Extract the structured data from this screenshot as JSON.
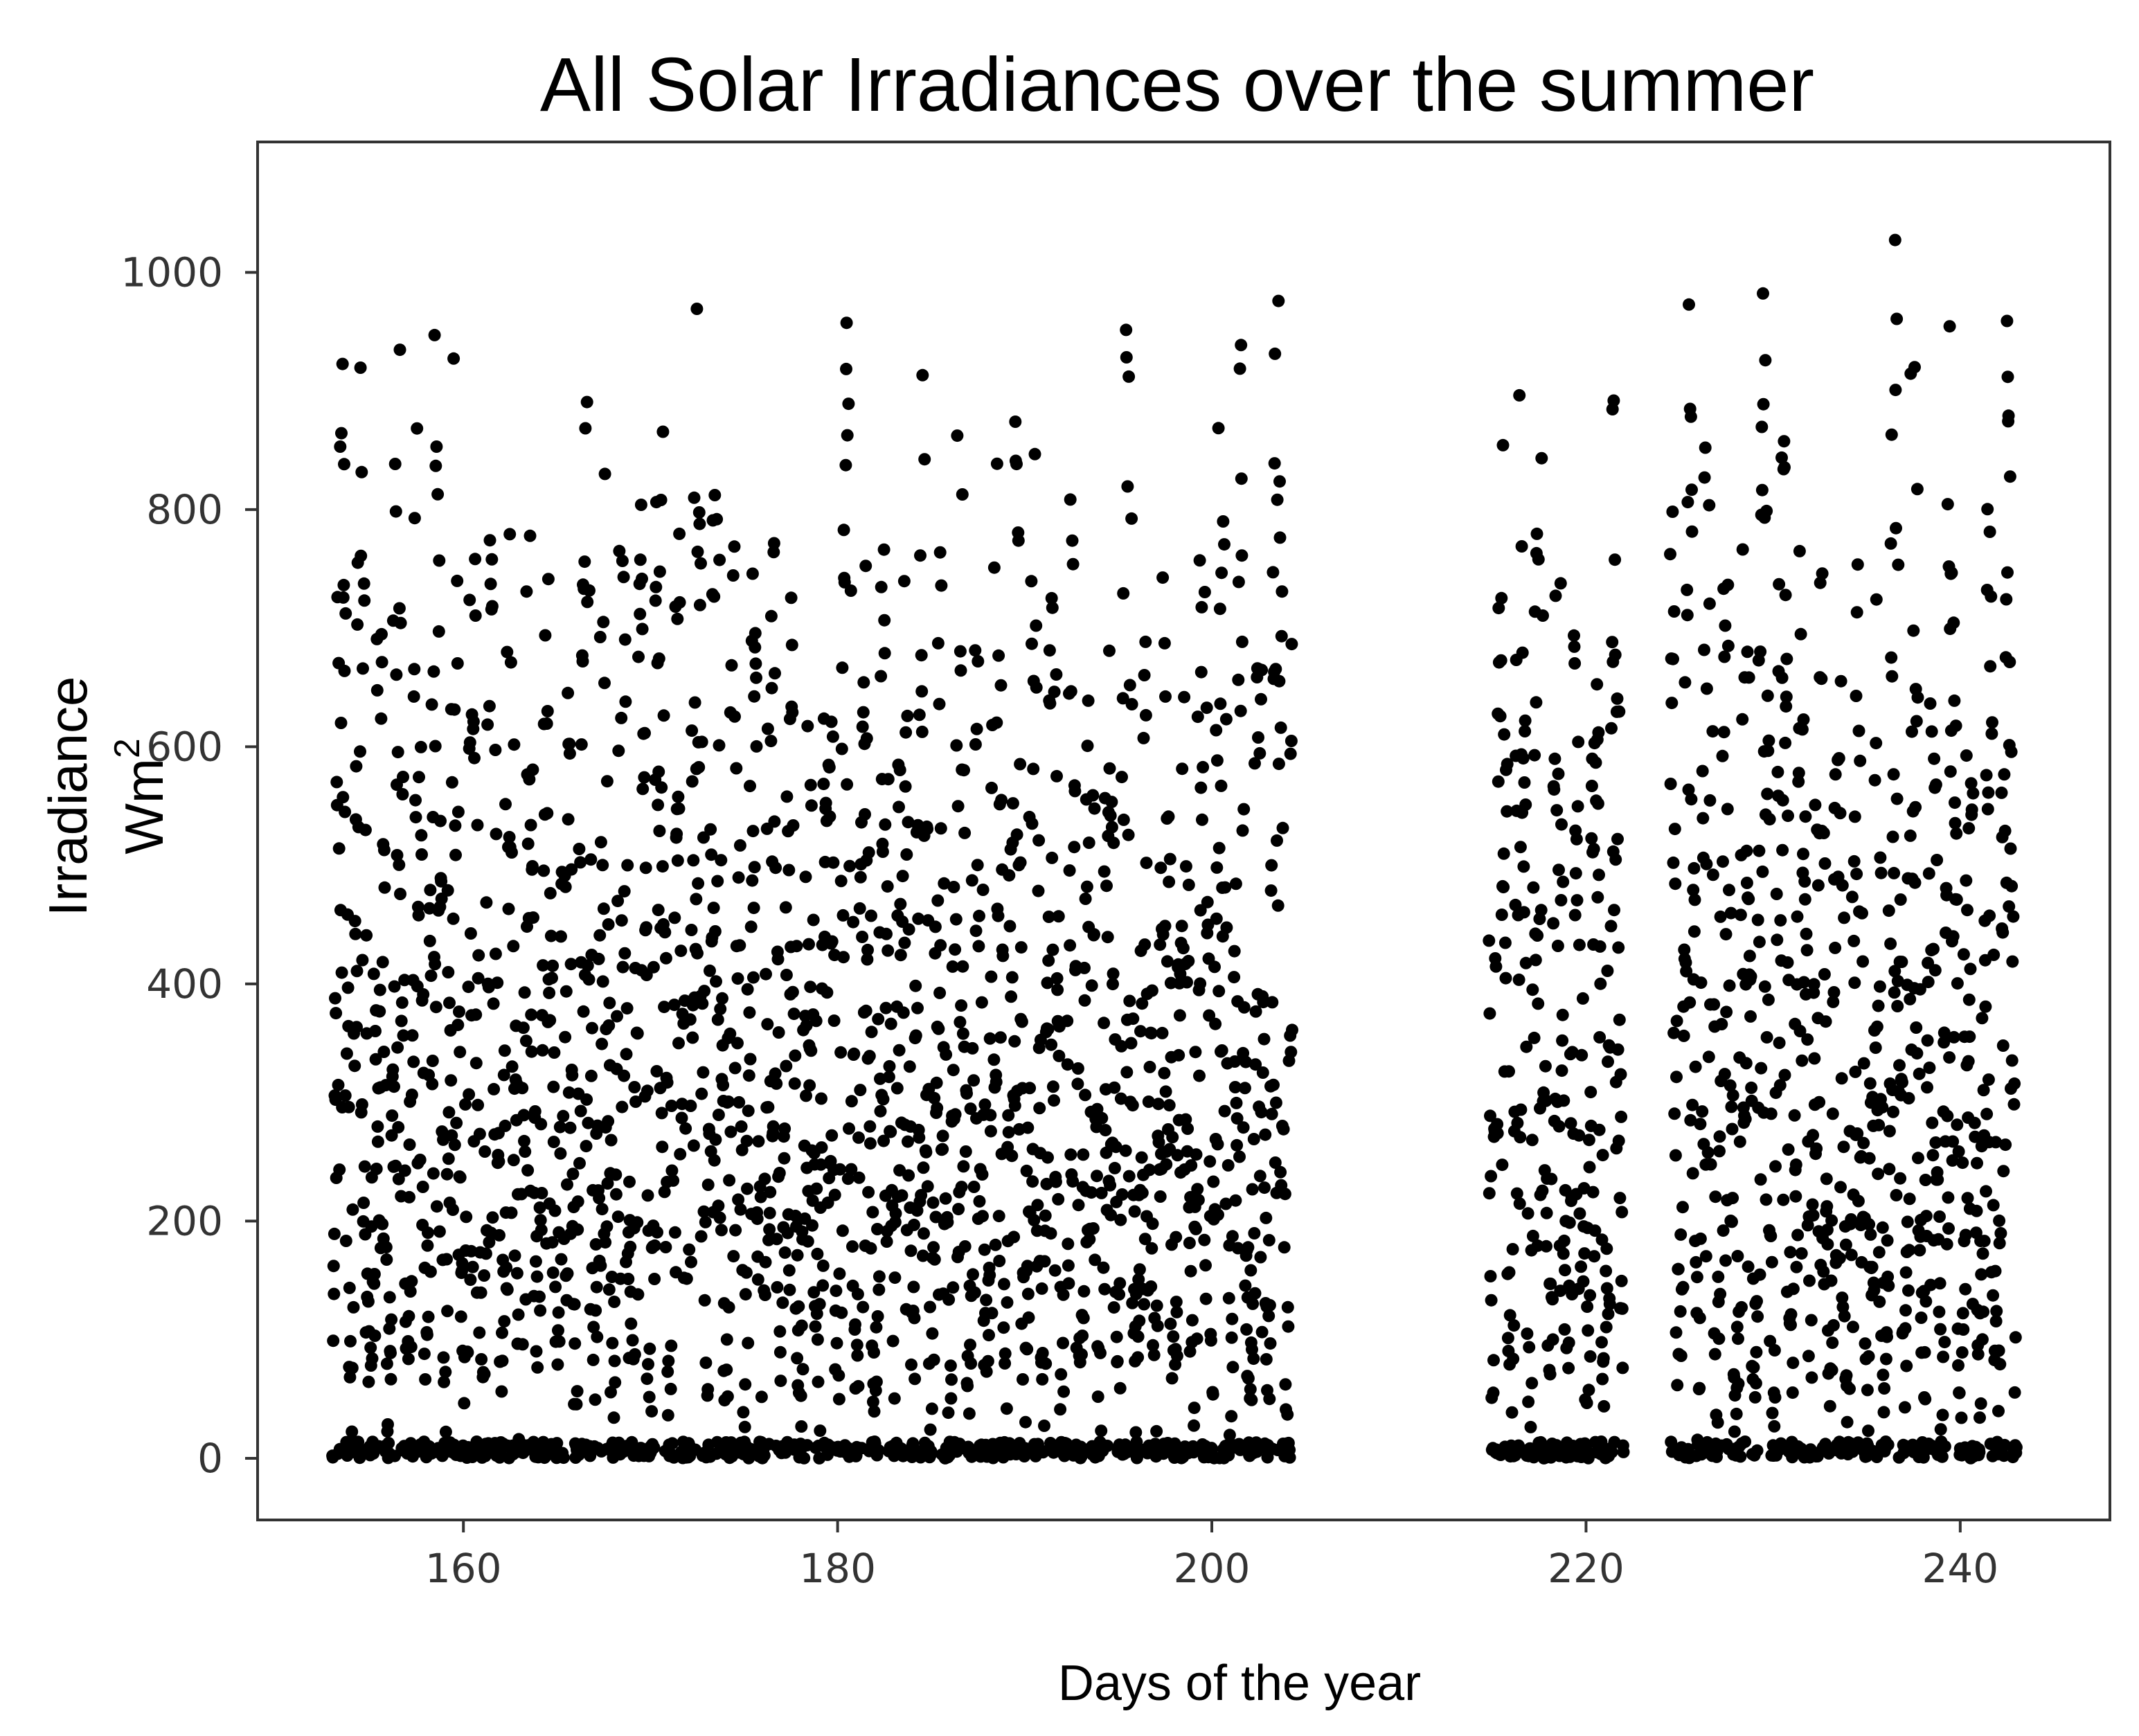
{
  "chart_data": {
    "type": "scatter",
    "title": "All Solar Irradiances over the summer",
    "xlabel": "Days of the year",
    "ylabel": "Irradiance",
    "ylabel_unit": "Wm",
    "ylabel_superscript": "2",
    "xlim": [
      149,
      248
    ],
    "ylim": [
      -52,
      1110
    ],
    "xticks": [
      160,
      180,
      200,
      220,
      240
    ],
    "yticks": [
      0,
      200,
      400,
      600,
      800,
      1000
    ],
    "xtick_labels": [
      "160",
      "180",
      "200",
      "220",
      "240"
    ],
    "ytick_labels": [
      "0",
      "200",
      "400",
      "600",
      "800",
      "1000"
    ],
    "grid": false,
    "marker_color": "#000000",
    "series": [
      {
        "day_start": 153,
        "day_end": 243,
        "readings_per_day": 48,
        "missing_day_ranges": [
          [
            204.3,
            214.8
          ],
          [
            222.0,
            224.5
          ]
        ],
        "value_range": [
          0,
          1065
        ]
      }
    ]
  }
}
